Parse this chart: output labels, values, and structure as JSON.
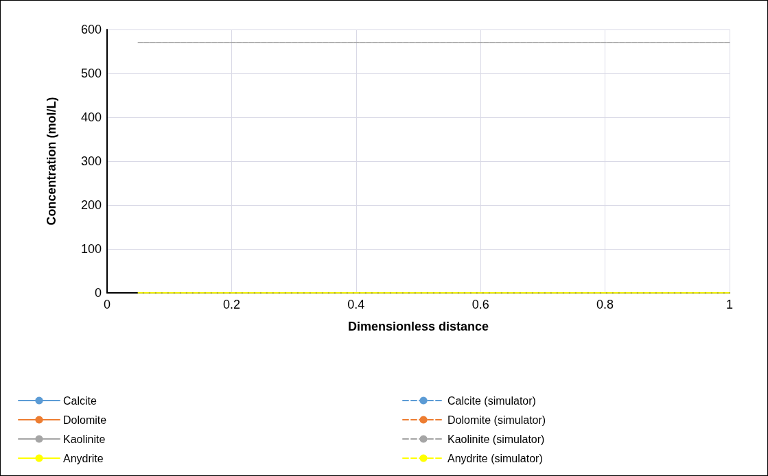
{
  "chart_data": {
    "type": "line",
    "xlabel": "Dimensionless distance",
    "ylabel": "Concentration (mol/L)",
    "x": [
      0.05,
      1
    ],
    "xlim": [
      0,
      1
    ],
    "xticks": [
      0,
      0.2,
      0.4,
      0.6,
      0.8,
      1
    ],
    "ylim": [
      0,
      600
    ],
    "yticks": [
      0,
      100,
      200,
      300,
      400,
      500,
      600
    ],
    "grid": true,
    "legend": "bottom",
    "marker": "none",
    "series": [
      {
        "name": "Calcite",
        "color": "#5b9bd5",
        "line_style": "solid",
        "values": [
          null,
          null
        ]
      },
      {
        "name": "Calcite (simulator)",
        "color": "#5b9bd5",
        "line_style": "dashed",
        "values": [
          null,
          null
        ]
      },
      {
        "name": "Dolomite",
        "color": "#ed7d31",
        "line_style": "solid",
        "values": [
          null,
          null
        ]
      },
      {
        "name": "Dolomite (simulator)",
        "color": "#ed7d31",
        "line_style": "dashed",
        "values": [
          null,
          null
        ]
      },
      {
        "name": "Kaolinite",
        "color": "#a5a5a5",
        "line_style": "solid",
        "values": [
          570,
          570
        ]
      },
      {
        "name": "Kaolinite (simulator)",
        "color": "#a5a5a5",
        "line_style": "dashed",
        "values": [
          570,
          570
        ]
      },
      {
        "name": "Anydrite",
        "color": "#ffff00",
        "line_style": "solid",
        "values": [
          0,
          0
        ]
      },
      {
        "name": "Anydrite (simulator)",
        "color": "#ffff00",
        "line_style": "dashed",
        "values": [
          0,
          0
        ]
      }
    ]
  }
}
